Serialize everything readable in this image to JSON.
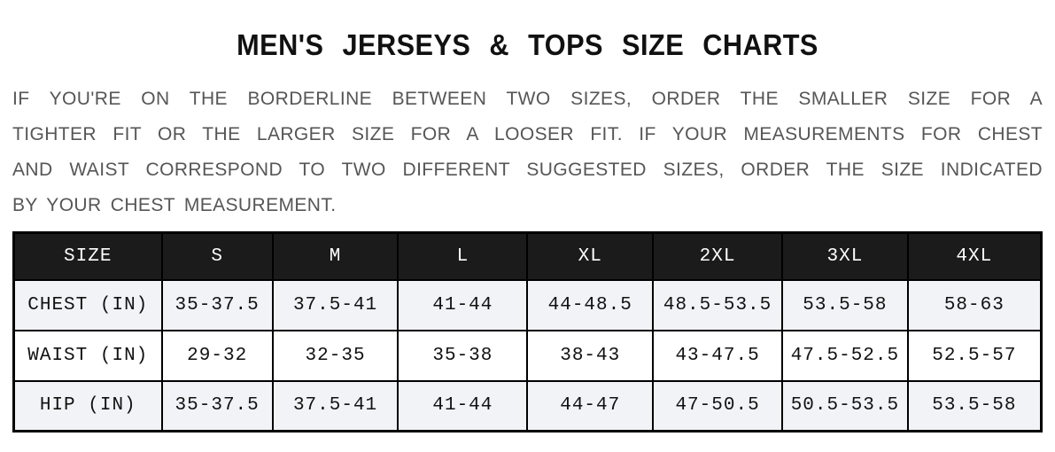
{
  "page": {
    "title": "MEN'S JERSEYS & TOPS SIZE CHARTS",
    "intro_lines": [
      "IF YOU'RE ON THE BORDERLINE BETWEEN TWO SIZES, ORDER THE SMALLER SIZE FOR A",
      "TIGHTER FIT OR THE LARGER SIZE FOR A LOOSER FIT. IF YOUR MEASUREMENTS FOR CHEST",
      "AND WAIST CORRESPOND TO TWO DIFFERENT SUGGESTED SIZES, ORDER THE SIZE INDICATED",
      "BY YOUR CHEST MEASUREMENT."
    ]
  },
  "size_table": {
    "headers": [
      "SIZE",
      "S",
      "M",
      "L",
      "XL",
      "2XL",
      "3XL",
      "4XL"
    ],
    "rows": [
      {
        "label": "CHEST (IN)",
        "values": [
          "35-37.5",
          "37.5-41",
          "41-44",
          "44-48.5",
          "48.5-53.5",
          "53.5-58",
          "58-63"
        ]
      },
      {
        "label": "WAIST (IN)",
        "values": [
          "29-32",
          "32-35",
          "35-38",
          "38-43",
          "43-47.5",
          "47.5-52.5",
          "52.5-57"
        ]
      },
      {
        "label": "HIP (IN)",
        "values": [
          "35-37.5",
          "37.5-41",
          "41-44",
          "44-47",
          "47-50.5",
          "50.5-53.5",
          "53.5-58"
        ]
      }
    ]
  },
  "colors": {
    "header_bg": "#1b1b1b",
    "header_text": "#ffffff",
    "stripe_bg": "#f1f3f6",
    "body_text": "#111111",
    "intro_text": "#565656",
    "border": "#000000",
    "title_text": "#111111"
  }
}
